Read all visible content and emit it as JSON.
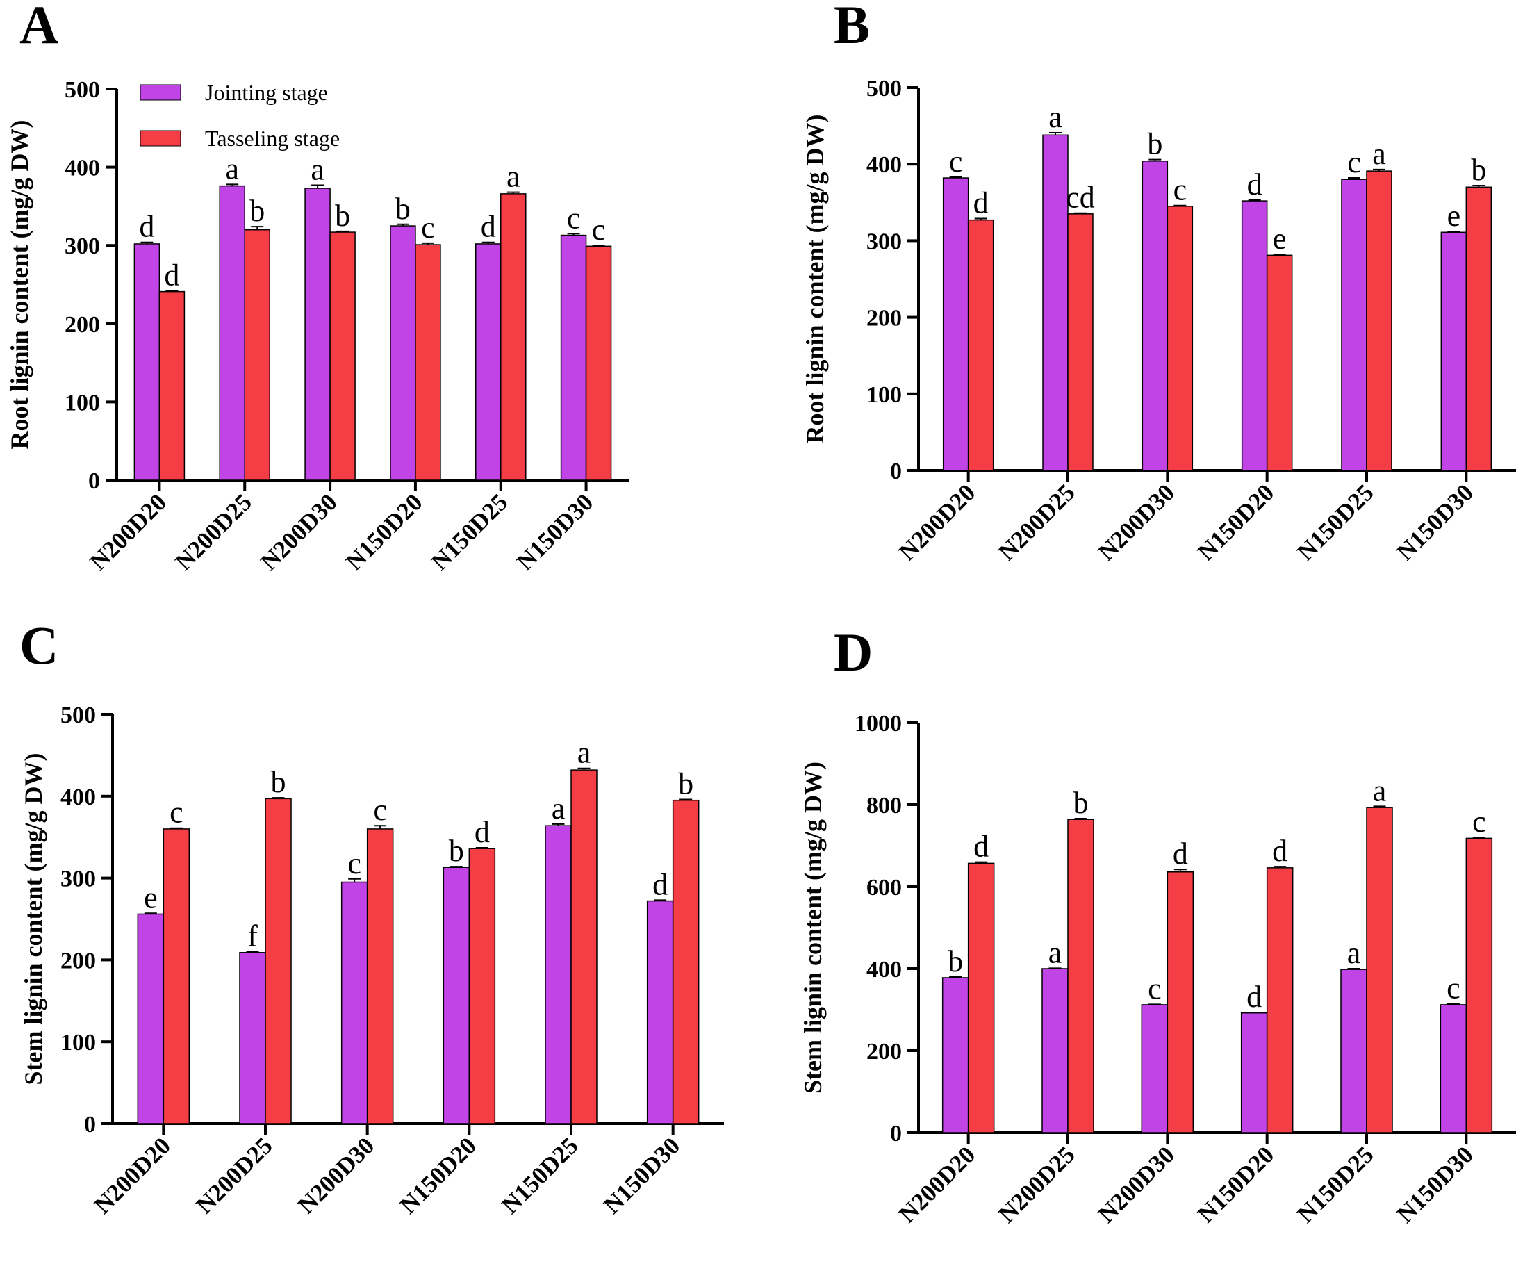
{
  "legend": {
    "jointing_label": "Jointing stage",
    "tasseling_label": "Tasseling stage"
  },
  "colors": {
    "jointing": "#c044e6",
    "tasseling": "#f53d45",
    "axis": "#000000"
  },
  "chart_data": [
    {
      "panel": "A",
      "type": "bar",
      "ylabel": "Root lignin content (mg/g DW)",
      "ylim": [
        0,
        500
      ],
      "yticks": [
        0,
        100,
        200,
        300,
        400,
        500
      ],
      "categories": [
        "N200D20",
        "N200D25",
        "N200D30",
        "N150D20",
        "N150D25",
        "N150D30"
      ],
      "series": [
        {
          "name": "Jointing stage",
          "values": [
            302,
            376,
            373,
            325,
            302,
            313
          ],
          "errors": [
            2,
            2,
            4,
            2,
            2,
            2
          ],
          "letters": [
            "d",
            "a",
            "a",
            "b",
            "d",
            "c"
          ]
        },
        {
          "name": "Tasseling stage",
          "values": [
            241,
            320,
            317,
            301,
            366,
            299
          ],
          "errors": [
            1,
            4,
            1,
            2,
            2,
            1
          ],
          "letters": [
            "d",
            "b",
            "b",
            "c",
            "a",
            "c"
          ]
        }
      ]
    },
    {
      "panel": "B",
      "type": "bar",
      "ylabel": "Root lignin content (mg/g DW)",
      "ylim": [
        0,
        500
      ],
      "yticks": [
        0,
        100,
        200,
        300,
        400,
        500
      ],
      "categories": [
        "N200D20",
        "N200D25",
        "N200D30",
        "N150D20",
        "N150D25",
        "N150D30"
      ],
      "series": [
        {
          "name": "Jointing stage",
          "values": [
            382,
            438,
            404,
            352,
            380,
            311
          ],
          "errors": [
            1,
            3,
            2,
            1,
            2,
            1
          ],
          "letters": [
            "c",
            "a",
            "b",
            "d",
            "c",
            "e"
          ]
        },
        {
          "name": "Tasseling stage",
          "values": [
            327,
            335,
            345,
            281,
            391,
            370
          ],
          "errors": [
            2,
            1,
            1,
            1,
            2,
            2
          ],
          "letters": [
            "d",
            "cd",
            "c",
            "e",
            "a",
            "b"
          ]
        }
      ]
    },
    {
      "panel": "C",
      "type": "bar",
      "ylabel": "Stem lignin content (mg/g DW)",
      "ylim": [
        0,
        500
      ],
      "yticks": [
        0,
        100,
        200,
        300,
        400,
        500
      ],
      "categories": [
        "N200D20",
        "N200D25",
        "N200D30",
        "N150D20",
        "N150D25",
        "N150D30"
      ],
      "series": [
        {
          "name": "Jointing stage",
          "values": [
            256,
            209,
            295,
            313,
            364,
            272
          ],
          "errors": [
            1,
            1,
            4,
            1,
            2,
            1
          ],
          "letters": [
            "e",
            "f",
            "c",
            "b",
            "a",
            "d"
          ]
        },
        {
          "name": "Tasseling stage",
          "values": [
            360,
            397,
            360,
            336,
            432,
            395
          ],
          "errors": [
            1,
            1,
            4,
            1,
            2,
            1
          ],
          "letters": [
            "c",
            "b",
            "c",
            "d",
            "a",
            "b"
          ]
        }
      ]
    },
    {
      "panel": "D",
      "type": "bar",
      "ylabel": "Stem lignin content (mg/g DW)",
      "ylim": [
        0,
        1000
      ],
      "yticks": [
        0,
        200,
        400,
        600,
        800,
        1000
      ],
      "categories": [
        "N200D20",
        "N200D25",
        "N200D30",
        "N150D20",
        "N150D25",
        "N150D30"
      ],
      "series": [
        {
          "name": "Jointing stage",
          "values": [
            378,
            400,
            312,
            292,
            398,
            312
          ],
          "errors": [
            2,
            1,
            1,
            1,
            2,
            2
          ],
          "letters": [
            "b",
            "a",
            "c",
            "d",
            "a",
            "c"
          ]
        },
        {
          "name": "Tasseling stage",
          "values": [
            657,
            764,
            636,
            646,
            793,
            718
          ],
          "errors": [
            3,
            2,
            6,
            3,
            3,
            2
          ],
          "letters": [
            "d",
            "b",
            "d",
            "d",
            "a",
            "c"
          ]
        }
      ]
    }
  ]
}
